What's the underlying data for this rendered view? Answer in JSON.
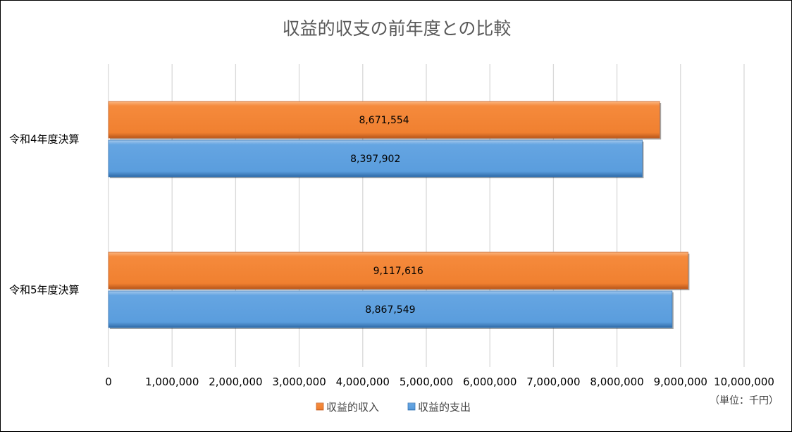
{
  "chart_data": {
    "type": "bar",
    "orientation": "horizontal",
    "title": "収益的収支の前年度との比較",
    "categories": [
      "令和4年度決算",
      "令和5年度決算"
    ],
    "series": [
      {
        "name": "収益的収入",
        "values": [
          8671554,
          9117616
        ],
        "color": "#f28436"
      },
      {
        "name": "収益的支出",
        "values": [
          8397902,
          8867549
        ],
        "color": "#5b9bd5"
      }
    ],
    "xlim": [
      0,
      10000000
    ],
    "x_ticks": [
      0,
      1000000,
      2000000,
      3000000,
      4000000,
      5000000,
      6000000,
      7000000,
      8000000,
      9000000,
      10000000
    ],
    "x_tick_labels": [
      "0",
      "1,000,000",
      "2,000,000",
      "3,000,000",
      "4,000,000",
      "5,000,000",
      "6,000,000",
      "7,000,000",
      "8,000,000",
      "9,000,000",
      "10,000,000"
    ],
    "unit_label": "（単位：千円）",
    "xlabel": "",
    "ylabel": "",
    "grid": true,
    "legend_position": "bottom",
    "data_labels": true
  }
}
